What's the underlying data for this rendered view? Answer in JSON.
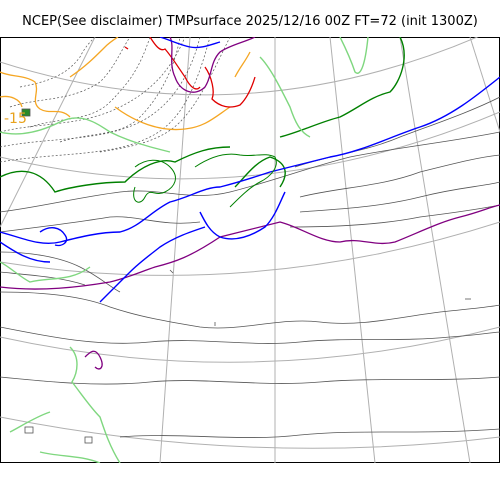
{
  "map": {
    "title": "NCEP(See disclaimer) TMPsurface 2025/12/16 00Z FT=72 (init 1300Z)",
    "contour_label": "-15"
  },
  "colors": {
    "graticule": "#b0b0b0",
    "coastline_blue": "#0000dd",
    "isotherm_0C": "#0000ff",
    "isotherm_green": "#008000",
    "isotherm_lightgreen": "#7fd77f",
    "isotherm_orange": "#f5a623",
    "isotherm_red": "#e00000",
    "isotherm_purple": "#800080",
    "isotherm_gray": "#555555"
  }
}
